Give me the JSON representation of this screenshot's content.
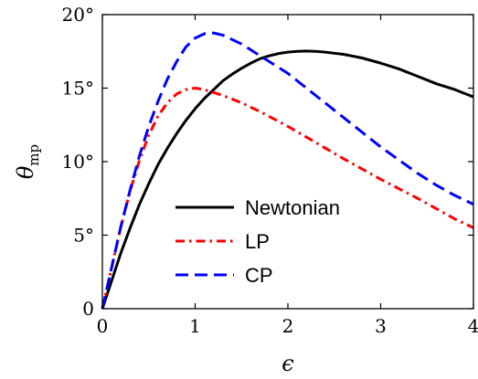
{
  "chart_data": {
    "type": "line",
    "title": "",
    "xlabel": "ϵ",
    "ylabel": {
      "main": "θ",
      "subscript": "mp"
    },
    "xlim": [
      0,
      4
    ],
    "ylim": [
      0,
      20
    ],
    "x_ticks": [
      0,
      1,
      2,
      3,
      4
    ],
    "x_tick_labels": [
      "0",
      "1",
      "2",
      "3",
      "4"
    ],
    "y_ticks": [
      0,
      5,
      10,
      15,
      20
    ],
    "y_tick_labels": [
      "0",
      "5°",
      "10°",
      "15°",
      "20°"
    ],
    "grid": false,
    "legend_position": "center-lower",
    "series": [
      {
        "name": "Newtonian",
        "style": "solid",
        "color": "#000000",
        "x": [
          0,
          0.1,
          0.2,
          0.3,
          0.4,
          0.5,
          0.6,
          0.7,
          0.8,
          0.9,
          1.0,
          1.1,
          1.2,
          1.3,
          1.4,
          1.5,
          1.6,
          1.7,
          1.8,
          1.9,
          2.0,
          2.1,
          2.2,
          2.3,
          2.4,
          2.6,
          2.8,
          3.0,
          3.2,
          3.4,
          3.6,
          3.8,
          4.0
        ],
        "y": [
          0,
          1.9,
          3.8,
          5.5,
          7.1,
          8.5,
          9.8,
          10.9,
          11.9,
          12.8,
          13.6,
          14.3,
          14.9,
          15.5,
          15.95,
          16.35,
          16.7,
          17.0,
          17.2,
          17.35,
          17.45,
          17.5,
          17.52,
          17.5,
          17.45,
          17.3,
          17.05,
          16.7,
          16.3,
          15.8,
          15.3,
          14.9,
          14.4
        ]
      },
      {
        "name": "LP",
        "style": "dashdot",
        "color": "#ff0000",
        "x": [
          0,
          0.1,
          0.2,
          0.3,
          0.4,
          0.5,
          0.6,
          0.7,
          0.8,
          0.9,
          1.0,
          1.1,
          1.2,
          1.3,
          1.5,
          1.7,
          2.0,
          2.3,
          2.6,
          3.0,
          3.4,
          3.8,
          4.0
        ],
        "y": [
          0,
          2.8,
          5.6,
          8.0,
          10.1,
          11.8,
          13.1,
          14.0,
          14.6,
          14.9,
          15.0,
          14.9,
          14.7,
          14.5,
          14.0,
          13.4,
          12.4,
          11.3,
          10.2,
          8.8,
          7.5,
          6.1,
          5.5
        ]
      },
      {
        "name": "CP",
        "style": "dashed",
        "color": "#0000ff",
        "x": [
          0,
          0.1,
          0.2,
          0.3,
          0.4,
          0.5,
          0.6,
          0.7,
          0.8,
          0.9,
          1.0,
          1.1,
          1.2,
          1.3,
          1.4,
          1.5,
          1.6,
          1.8,
          2.0,
          2.2,
          2.4,
          2.6,
          2.8,
          3.0,
          3.2,
          3.4,
          3.6,
          3.8,
          4.0
        ],
        "y": [
          0,
          2.8,
          5.6,
          8.1,
          10.4,
          12.4,
          14.1,
          15.6,
          16.8,
          17.8,
          18.4,
          18.7,
          18.75,
          18.6,
          18.3,
          18.0,
          17.6,
          16.8,
          16.0,
          15.0,
          14.0,
          13.0,
          12.0,
          11.0,
          10.1,
          9.2,
          8.4,
          7.7,
          7.1
        ]
      }
    ]
  }
}
